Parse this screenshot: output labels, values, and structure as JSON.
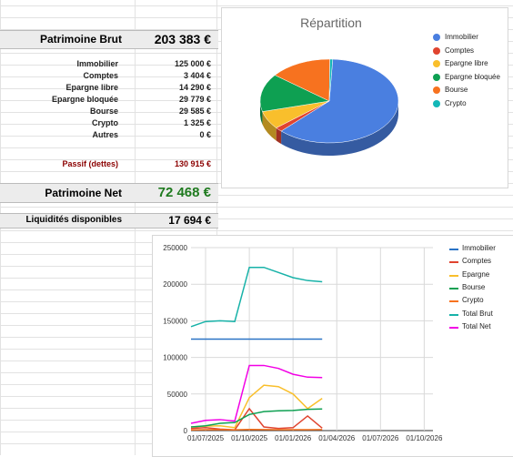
{
  "summary": {
    "brut": {
      "label": "Patrimoine Brut",
      "value": "203 383 €"
    },
    "items": [
      {
        "label": "Immobilier",
        "value": "125 000 €"
      },
      {
        "label": "Comptes",
        "value": "3 404 €"
      },
      {
        "label": "Epargne libre",
        "value": "14 290 €"
      },
      {
        "label": "Epargne bloquée",
        "value": "29 779 €"
      },
      {
        "label": "Bourse",
        "value": "29 585 €"
      },
      {
        "label": "Crypto",
        "value": "1 325 €"
      },
      {
        "label": "Autres",
        "value": "0 €"
      }
    ],
    "passif": {
      "label": "Passif (dettes)",
      "value": "130 915 €"
    },
    "net": {
      "label": "Patrimoine Net",
      "value": "72 468 €"
    },
    "liquid": {
      "label": "Liquidités disponibles",
      "value": "17 694 €"
    }
  },
  "colors": {
    "immobilier": "#4a7fe0",
    "comptes": "#e0442f",
    "epargne": "#f9bf2c",
    "epargne_bloquee": "#0ea052",
    "bourse": "#f7721f",
    "crypto": "#14b8b8",
    "total_brut": "#17b2a8",
    "total_net": "#f200e5",
    "line_immobilier": "#2a73c6"
  },
  "chart_data": [
    {
      "type": "pie",
      "title": "Répartition",
      "legend_position": "right",
      "categories": [
        "Immobilier",
        "Comptes",
        "Epargne libre",
        "Epargne bloquée",
        "Bourse",
        "Crypto"
      ],
      "values": [
        125000,
        3404,
        14290,
        29779,
        29585,
        1325
      ]
    },
    {
      "type": "line",
      "title": "",
      "xlabel": "",
      "ylabel": "",
      "legend_position": "right",
      "grid": true,
      "ylim": [
        0,
        250000
      ],
      "yticks": [
        "0",
        "50000",
        "100000",
        "150000",
        "200000",
        "250000"
      ],
      "xticks": [
        "01/07/2025",
        "01/10/2025",
        "01/01/2026",
        "01/04/2026",
        "01/07/2026",
        "01/10/2026"
      ],
      "x": [
        "2025-06",
        "2025-07",
        "2025-08",
        "2025-09",
        "2025-10",
        "2025-11",
        "2025-12",
        "2026-01",
        "2026-02",
        "2026-03"
      ],
      "series": [
        {
          "name": "Immobilier",
          "values": [
            125000,
            125000,
            125000,
            125000,
            125000,
            125000,
            125000,
            125000,
            125000,
            125000
          ]
        },
        {
          "name": "Comptes",
          "values": [
            3000,
            4000,
            2000,
            1000,
            30000,
            5000,
            3000,
            4000,
            20000,
            3400
          ]
        },
        {
          "name": "Epargne",
          "values": [
            5000,
            6000,
            6500,
            4000,
            45000,
            62000,
            60000,
            50000,
            30000,
            44000
          ]
        },
        {
          "name": "Bourse",
          "values": [
            5000,
            6500,
            10000,
            11000,
            22000,
            26000,
            27000,
            27500,
            29000,
            29600
          ]
        },
        {
          "name": "Crypto",
          "values": [
            1000,
            1200,
            1300,
            1100,
            1500,
            1400,
            1300,
            1200,
            1300,
            1325
          ]
        },
        {
          "name": "Total Brut",
          "values": [
            142000,
            149000,
            150000,
            149000,
            223000,
            223000,
            216000,
            209000,
            205000,
            203400
          ]
        },
        {
          "name": "Total Net",
          "values": [
            10000,
            14000,
            15000,
            13000,
            89000,
            89000,
            85000,
            77000,
            73000,
            72500
          ]
        }
      ]
    }
  ]
}
